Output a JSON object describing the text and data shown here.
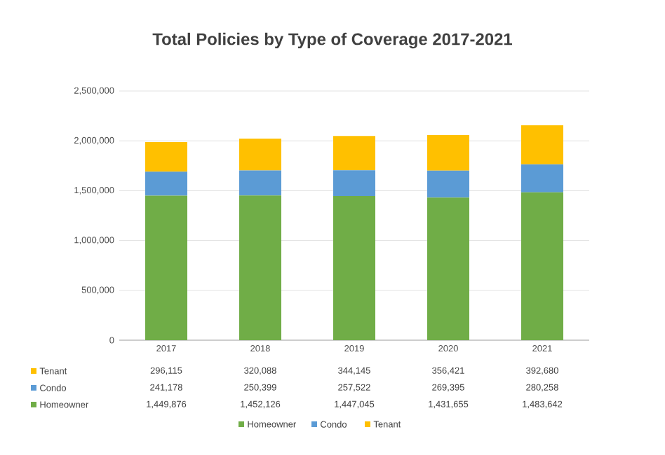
{
  "chart_data": {
    "type": "bar",
    "stacked": true,
    "title": "Total Policies by Type of Coverage 2017-2021",
    "categories": [
      "2017",
      "2018",
      "2019",
      "2020",
      "2021"
    ],
    "series": [
      {
        "name": "Homeowner",
        "color": "#70ad47",
        "values": [
          1449876,
          1452126,
          1447045,
          1431655,
          1483642
        ],
        "value_labels": [
          "1,449,876",
          "1,452,126",
          "1,447,045",
          "1,431,655",
          "1,483,642"
        ]
      },
      {
        "name": "Condo",
        "color": "#5b9bd5",
        "values": [
          241178,
          250399,
          257522,
          269395,
          280258
        ],
        "value_labels": [
          "241,178",
          "250,399",
          "257,522",
          "269,395",
          "280,258"
        ]
      },
      {
        "name": "Tenant",
        "color": "#ffc000",
        "values": [
          296115,
          320088,
          344145,
          356421,
          392680
        ],
        "value_labels": [
          "296,115",
          "320,088",
          "344,145",
          "356,421",
          "392,680"
        ]
      }
    ],
    "ylim": [
      0,
      2500000
    ],
    "yticks": [
      0,
      {
        "value": 500000,
        "label": "500,000"
      },
      {
        "value": 1000000,
        "label": "1,000,000"
      },
      {
        "value": 1500000,
        "label": "1,500,000"
      },
      {
        "value": 2000000,
        "label": "2,000,000"
      },
      {
        "value": 2500000,
        "label": "2,500,000"
      }
    ],
    "grid": "y",
    "legend": "bottom"
  }
}
